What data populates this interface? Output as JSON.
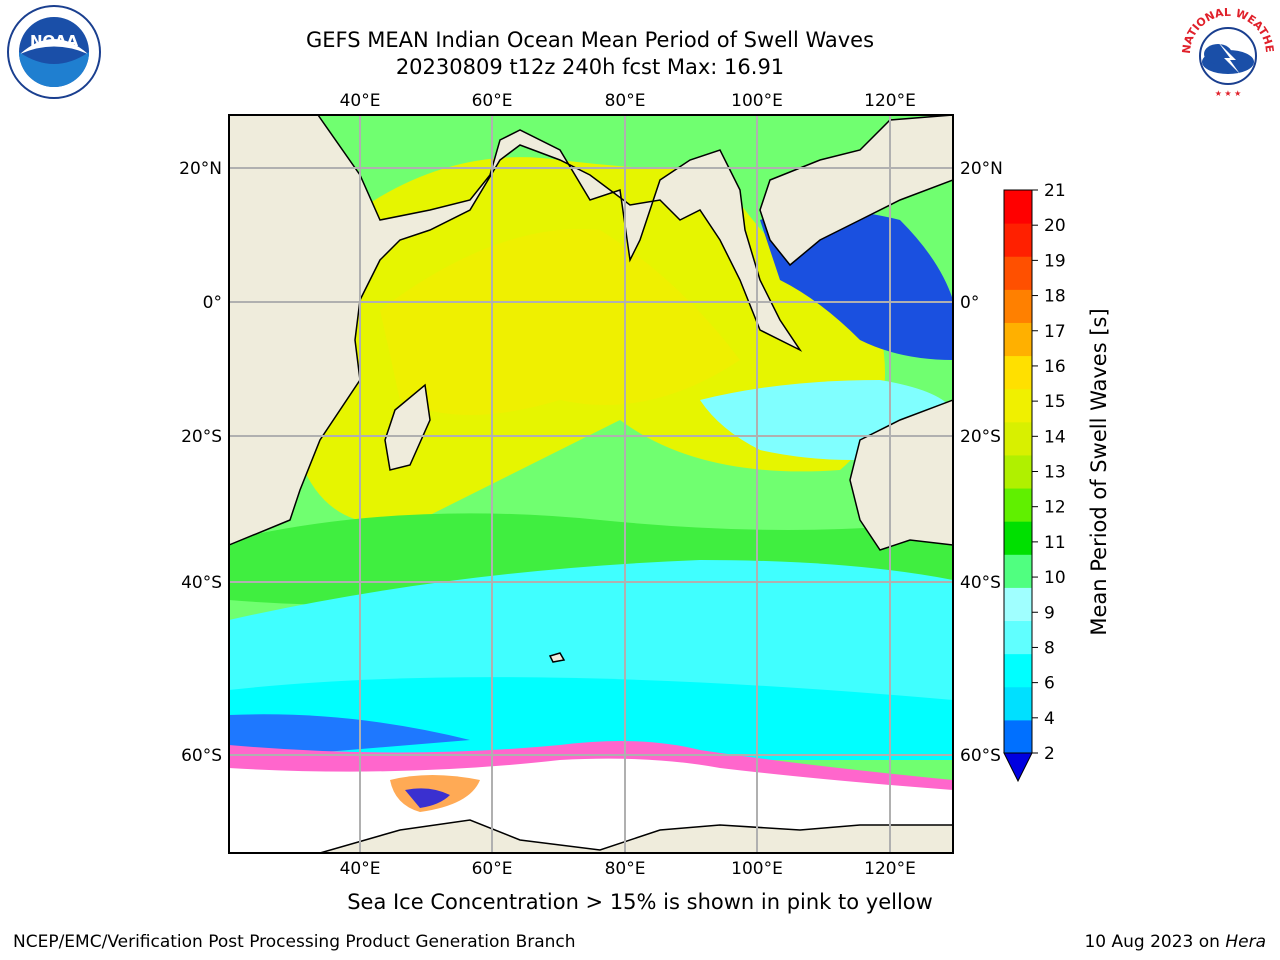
{
  "header": {
    "title_line1": "GEFS MEAN Indian Ocean Mean Period of Swell Waves",
    "title_line2": "20230809 t12z 240h fcst   Max: 16.91"
  },
  "logos": {
    "noaa": {
      "text": "NOAA",
      "icon": "noaa-bird-logo"
    },
    "nws": {
      "text": "NATIONAL WEATHER SERVICE",
      "icon": "nws-storm-logo"
    }
  },
  "map": {
    "lon_ticks": [
      "40°E",
      "60°E",
      "80°E",
      "100°E",
      "120°E"
    ],
    "lat_ticks_left": [
      "20°N",
      "0°",
      "20°S",
      "40°S",
      "60°S"
    ],
    "lat_ticks_right": [
      "20°N",
      "0°",
      "20°S",
      "40°S",
      "60°S"
    ],
    "land_color": "#efecdc",
    "ice_colors": [
      "#ff66cc",
      "#ff99cc",
      "#ffcc66",
      "#ffee55"
    ]
  },
  "colorbar": {
    "label": "Mean Period of Swell Waves [s]",
    "ticks": [
      "21",
      "20",
      "19",
      "18",
      "17",
      "16",
      "15",
      "14",
      "13",
      "12",
      "11",
      "10",
      "9",
      "8",
      "6",
      "4",
      "2"
    ],
    "colors": [
      "#0000e0",
      "#0070ff",
      "#00e0ff",
      "#00ffff",
      "#60ffff",
      "#a0ffff",
      "#50ff80",
      "#00e000",
      "#60f000",
      "#b0f000",
      "#d8f000",
      "#f0f000",
      "#ffe000",
      "#ffb000",
      "#ff8000",
      "#ff5000",
      "#ff2000",
      "#ff0000"
    ]
  },
  "caption": "Sea Ice Concentration > 15% is shown in pink to yellow",
  "footer": {
    "left": "NCEP/EMC/Verification Post Processing Product Generation Branch",
    "date": "10 Aug 2023 on ",
    "machine": "Hera"
  }
}
